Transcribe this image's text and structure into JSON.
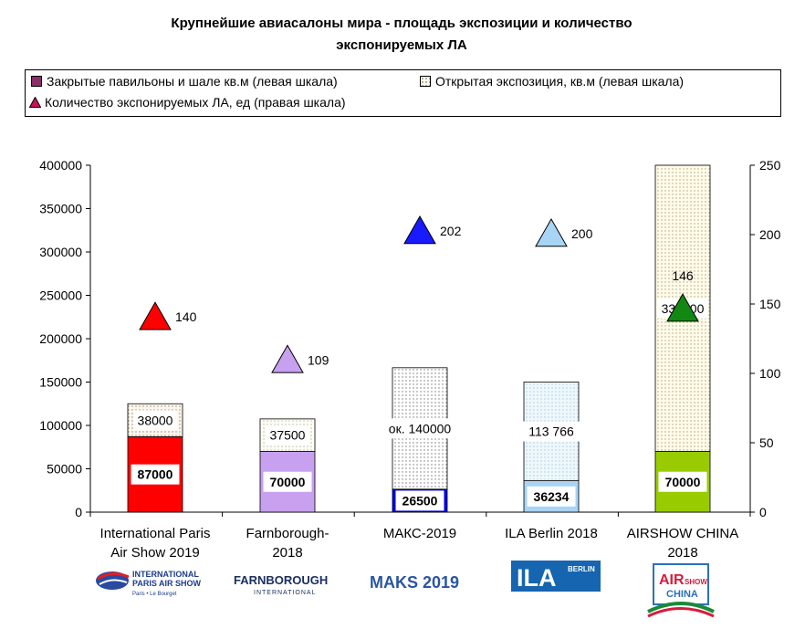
{
  "title_line1": "Крупнейшие авиасалоны мира - площадь экспозиции и количество",
  "title_line2": "экспонируемых ЛА",
  "legend": {
    "closed": "Закрытые павильоны и шале кв.м (левая шкала)",
    "open": "Открытая экспозиция, кв.м (левая шкала)",
    "aircraft": "Количество экспонируемых ЛА, ед (правая шкала)"
  },
  "chart_data": {
    "type": "bar",
    "stacked": true,
    "categories": [
      [
        "International Paris",
        "Air Show 2019"
      ],
      [
        "Farnborough-",
        "2018"
      ],
      [
        "МАКС-2019"
      ],
      [
        "ILA Berlin 2018"
      ],
      [
        "AIRSHOW CHINA",
        "2018"
      ]
    ],
    "series": [
      {
        "name": "Закрытые павильоны и шале кв.м (левая шкала)",
        "values": [
          87000,
          70000,
          26500,
          36234,
          70000
        ],
        "labels": [
          "87000",
          "70000",
          "26500",
          "36234",
          "70000"
        ],
        "colors": [
          "#ff0000",
          "#c8a0f0",
          "#0000e6",
          "#a8d4f5",
          "#99cc00"
        ]
      },
      {
        "name": "Открытая экспозиция, кв.м (левая шкала)",
        "values": [
          38000,
          37500,
          140000,
          113766,
          330000
        ],
        "labels": [
          "38000",
          "37500",
          "ок. 140000",
          "113 766",
          "330000"
        ],
        "colors": [
          "#fff6e8",
          "#fffef2",
          "#ffffff",
          "#e6f3fb",
          "#fffbe6"
        ]
      },
      {
        "name": "Количество экспонируемых ЛА, ед (правая шкала)",
        "axis": "right",
        "values": [
          140,
          109,
          202,
          200,
          146
        ],
        "labels": [
          "140",
          "109",
          "202",
          "200",
          "146"
        ],
        "colors": [
          "#ff0000",
          "#c8a0f0",
          "#1a1aff",
          "#a8d4f5",
          "#118811"
        ]
      }
    ],
    "left_axis": {
      "min": 0,
      "max": 400000,
      "step": 50000,
      "ticks": [
        "0",
        "50000",
        "100000",
        "150000",
        "200000",
        "250000",
        "300000",
        "350000",
        "400000"
      ]
    },
    "right_axis": {
      "min": 0,
      "max": 250,
      "step": 50,
      "ticks": [
        "0",
        "50",
        "100",
        "150",
        "200",
        "250"
      ]
    },
    "grid": false,
    "legend_position": "top"
  },
  "logos": [
    {
      "icon": "paris-air-show-logo",
      "line1": "INTERNATIONAL",
      "line2": "PARIS AIR SHOW",
      "line3": "Paris • Le Bourget"
    },
    {
      "icon": "farnborough-logo",
      "line1": "FARNBOROUGH",
      "line2": "INTERNATIONAL"
    },
    {
      "icon": "maks-logo",
      "text": "MAKS 2019"
    },
    {
      "icon": "ila-berlin-logo",
      "text": "ILA",
      "sub": "BERLIN"
    },
    {
      "icon": "airshow-china-logo",
      "text1": "AIR",
      "text2": "SHOW",
      "text3": "CHINA"
    }
  ]
}
